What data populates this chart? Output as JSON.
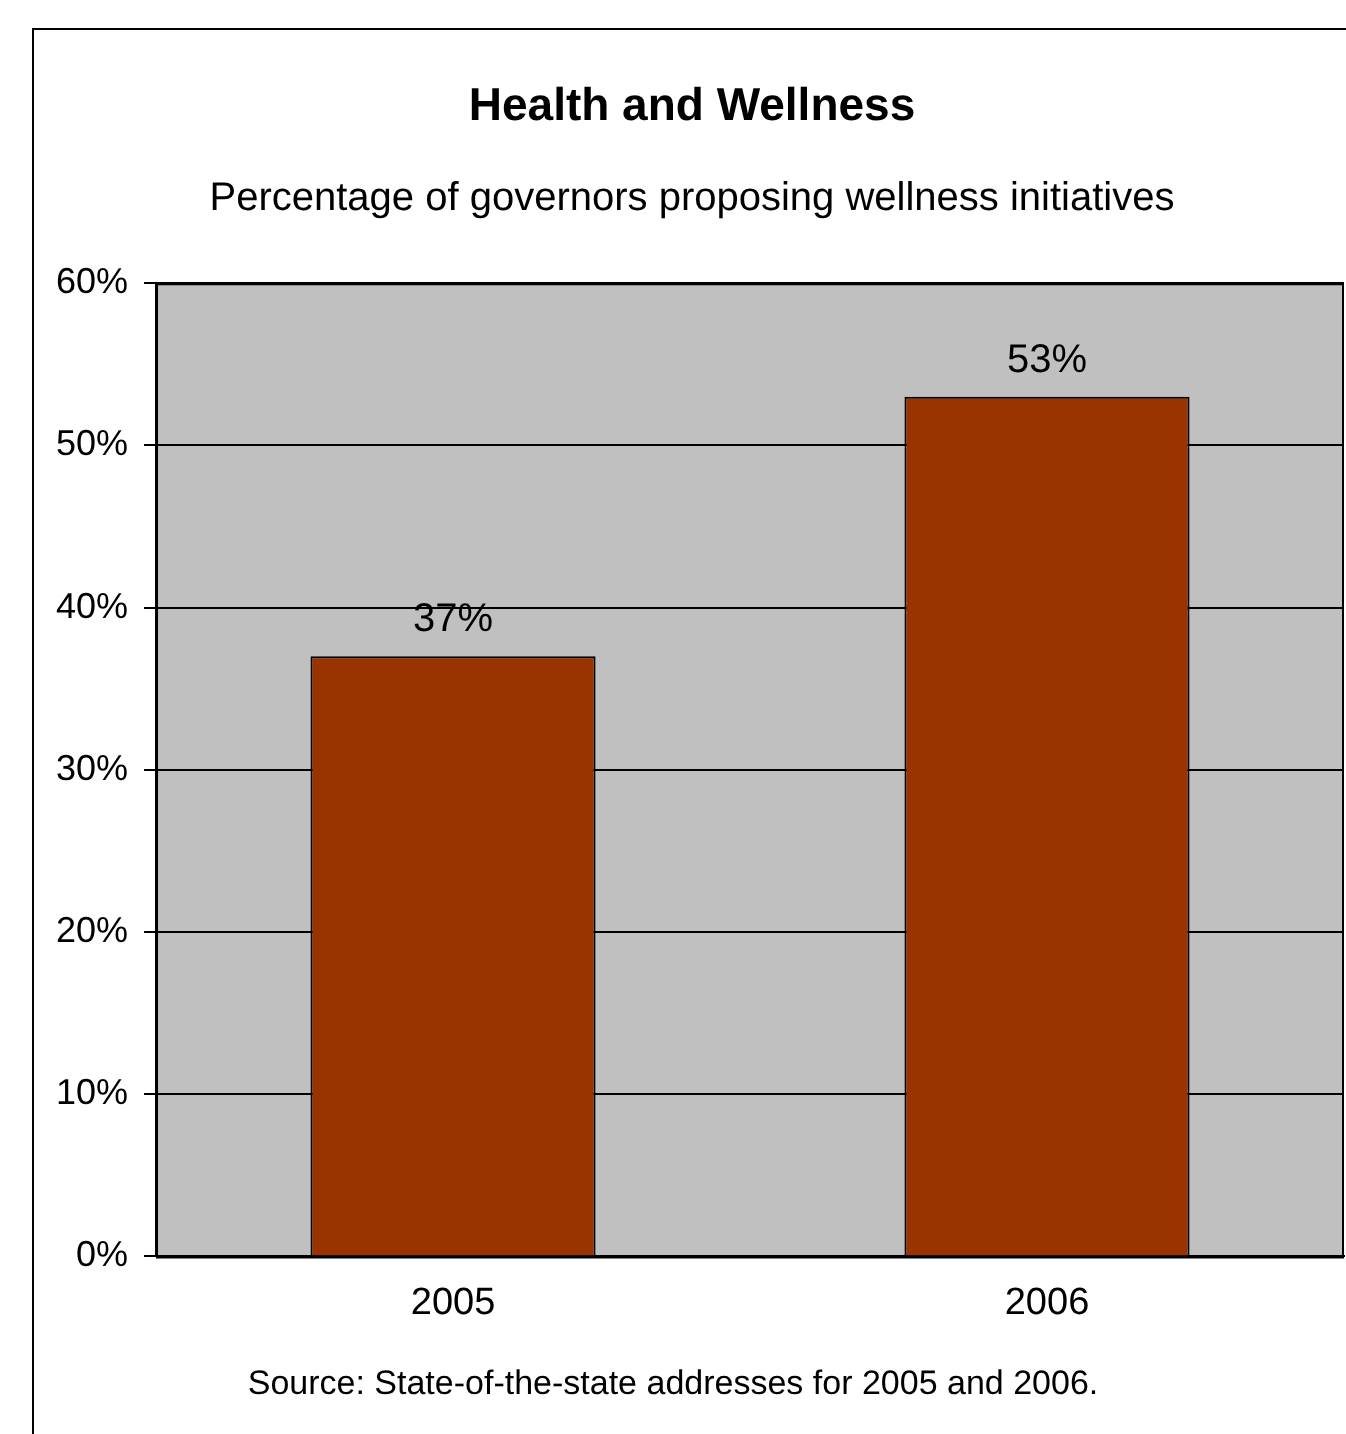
{
  "chart_data": {
    "type": "bar",
    "title": "Health and Wellness",
    "subtitle": "Percentage of governors proposing wellness initiatives",
    "categories": [
      "2005",
      "2006"
    ],
    "values": [
      37,
      53
    ],
    "color": "#993300",
    "value_labels": [
      "37%",
      "53%"
    ],
    "ylim": [
      0,
      60
    ],
    "yticks": [
      {
        "value": 0,
        "label": "0%"
      },
      {
        "value": 10,
        "label": "10%"
      },
      {
        "value": 20,
        "label": "20%"
      },
      {
        "value": 30,
        "label": "30%"
      },
      {
        "value": 40,
        "label": "40%"
      },
      {
        "value": 50,
        "label": "50%"
      },
      {
        "value": 60,
        "label": "60%"
      }
    ],
    "grid": "y",
    "legend": false,
    "annotations": [
      "Source: State-of-the-state addresses for 2005 and 2006."
    ]
  }
}
